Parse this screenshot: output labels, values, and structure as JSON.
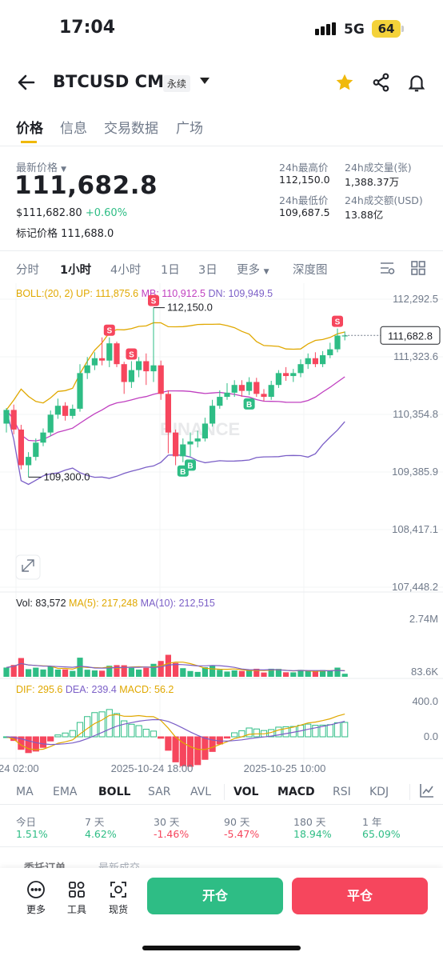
{
  "status": {
    "time": "17:04",
    "network": "5G",
    "battery": "64"
  },
  "header": {
    "symbol": "BTCUSD CM",
    "contract_type": "永续"
  },
  "tabs": [
    "价格",
    "信息",
    "交易数据",
    "广场"
  ],
  "price": {
    "last_label": "最新价格",
    "last": "111,682.8",
    "usd": "$111,682.80",
    "change": "+0.60%",
    "mark_label": "标记价格",
    "mark": "111,688.0"
  },
  "stats": {
    "high_label": "24h最高价",
    "high": "112,150.0",
    "vol_label": "24h成交量(张)",
    "vol": "1,388.37万",
    "low_label": "24h最低价",
    "low": "109,687.5",
    "turnover_label": "24h成交额(USD)",
    "turnover": "13.88亿"
  },
  "intervals": [
    "分时",
    "1小时",
    "4小时",
    "1日",
    "3日",
    "更多",
    "深度图"
  ],
  "chart_data": {
    "type": "candlestick",
    "interval": "1小时",
    "boll": {
      "label": "BOLL:(20, 2)",
      "up": "UP: 111,875.6",
      "mb": "MB: 110,912.5",
      "dn": "DN: 109,949.5"
    },
    "y_ticks": [
      "112,292.5",
      "111,323.6",
      "110,354.8",
      "109,385.9",
      "108,417.1",
      "107,448.2"
    ],
    "y_tick_values": [
      112292.5,
      111323.6,
      110354.8,
      109385.9,
      108417.1,
      107448.2
    ],
    "high_marker": "112,150.0",
    "low_marker": "109,300.0",
    "current_price": "111,682.8",
    "x_ticks": [
      "24 02:00",
      "2025-10-24 18:00",
      "2025-10-25 10:00"
    ],
    "candles": [
      [
        110200,
        110430,
        110050,
        110460
      ],
      [
        110430,
        110100,
        110020,
        110520
      ],
      [
        110100,
        109500,
        109430,
        110180
      ],
      [
        109500,
        109640,
        109300,
        109720
      ],
      [
        109640,
        109880,
        109580,
        109950
      ],
      [
        109880,
        110050,
        109820,
        110120
      ],
      [
        110050,
        110350,
        109990,
        110420
      ],
      [
        110350,
        110500,
        110280,
        110620
      ],
      [
        110500,
        110330,
        110250,
        110560
      ],
      [
        110330,
        110450,
        110280,
        110520
      ],
      [
        110450,
        111050,
        110400,
        111200
      ],
      [
        111050,
        111180,
        110950,
        111320
      ],
      [
        111180,
        111300,
        111100,
        111400
      ],
      [
        111300,
        111260,
        111180,
        111650
      ],
      [
        111260,
        111550,
        111150,
        111650
      ],
      [
        111550,
        111200,
        111150,
        111580
      ],
      [
        111200,
        110900,
        110700,
        111240
      ],
      [
        110900,
        111100,
        110800,
        111250
      ],
      [
        111100,
        111250,
        110980,
        111320
      ],
      [
        111250,
        111080,
        110850,
        111380
      ],
      [
        111080,
        111180,
        110900,
        112150
      ],
      [
        111180,
        110700,
        110600,
        111260
      ],
      [
        110700,
        110050,
        109700,
        110760
      ],
      [
        110050,
        109650,
        109500,
        110100
      ],
      [
        109650,
        109850,
        109550,
        109950
      ],
      [
        109850,
        109900,
        109650,
        110050
      ],
      [
        109900,
        109950,
        109800,
        110080
      ],
      [
        109950,
        110200,
        109900,
        110300
      ],
      [
        110200,
        110500,
        110150,
        110600
      ],
      [
        110500,
        110650,
        110450,
        110760
      ],
      [
        110650,
        110720,
        110600,
        110880
      ],
      [
        110720,
        110850,
        110650,
        110930
      ],
      [
        110850,
        110750,
        110650,
        110930
      ],
      [
        110750,
        110900,
        110680,
        110980
      ],
      [
        110900,
        110700,
        110650,
        110970
      ],
      [
        110700,
        110650,
        110580,
        110780
      ],
      [
        110650,
        110850,
        110600,
        110920
      ],
      [
        110850,
        111050,
        110800,
        111100
      ],
      [
        111050,
        111000,
        110920,
        111150
      ],
      [
        111000,
        111050,
        110900,
        111120
      ],
      [
        111050,
        111200,
        110980,
        111280
      ],
      [
        111200,
        111300,
        111120,
        111380
      ],
      [
        111300,
        111200,
        111150,
        111400
      ],
      [
        111200,
        111350,
        111150,
        111420
      ],
      [
        111350,
        111450,
        111300,
        111560
      ],
      [
        111450,
        111680,
        111400,
        111800
      ],
      [
        111680,
        111682.8,
        111600,
        111750
      ]
    ],
    "volume": {
      "label": "Vol: 83,572",
      "ma5": "MA(5): 217,248",
      "ma10": "MA(10): 212,515",
      "ticks": [
        "2.74M",
        "83.6K"
      ],
      "tick_values": [
        2740000,
        83600
      ]
    },
    "macd": {
      "dif": "DIF: 295.6",
      "dea": "DEA: 239.4",
      "macd": "MACD: 56.2",
      "ticks": [
        "400.0",
        "0.0"
      ],
      "tick_values": [
        400,
        0
      ]
    },
    "watermark": "BINANCE",
    "buy_marker": "B",
    "sell_marker": "S"
  },
  "indicators": [
    "MA",
    "EMA",
    "BOLL",
    "SAR",
    "AVL",
    "VOL",
    "MACD",
    "RSI",
    "KDJ"
  ],
  "performance": [
    {
      "label": "今日",
      "value": "1.51%",
      "dir": "up"
    },
    {
      "label": "7 天",
      "value": "4.62%",
      "dir": "up"
    },
    {
      "label": "30 天",
      "value": "-1.46%",
      "dir": "down"
    },
    {
      "label": "90 天",
      "value": "-5.47%",
      "dir": "down"
    },
    {
      "label": "180 天",
      "value": "18.94%",
      "dir": "up"
    },
    {
      "label": "1 年",
      "value": "65.09%",
      "dir": "up"
    }
  ],
  "peek_tabs": [
    "委托订单",
    "最新成交"
  ],
  "bottom": {
    "more": "更多",
    "tools": "工具",
    "spot": "现货",
    "open": "开仓",
    "close": "平仓",
    "colors": {
      "green": "#2ebd85",
      "red": "#f6465d"
    }
  }
}
